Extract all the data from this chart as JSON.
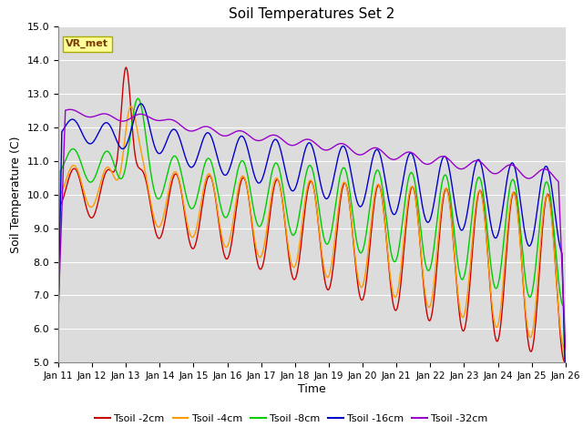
{
  "title": "Soil Temperatures Set 2",
  "xlabel": "Time",
  "ylabel": "Soil Temperature (C)",
  "ylim": [
    5.0,
    15.0
  ],
  "yticks": [
    5.0,
    6.0,
    7.0,
    8.0,
    9.0,
    10.0,
    11.0,
    12.0,
    13.0,
    14.0,
    15.0
  ],
  "bg_color": "#dcdcdc",
  "fig_color": "#ffffff",
  "grid_color": "#ffffff",
  "legend_labels": [
    "Tsoil -2cm",
    "Tsoil -4cm",
    "Tsoil -8cm",
    "Tsoil -16cm",
    "Tsoil -32cm"
  ],
  "line_colors": [
    "#cc0000",
    "#ff9900",
    "#00cc00",
    "#0000cc",
    "#9900cc"
  ],
  "annotation_text": "VR_met",
  "annotation_color": "#7a3b00",
  "annotation_bg": "#ffff99",
  "annotation_edge": "#aaaa00",
  "x_tick_labels": [
    "Jan 11",
    "Jan 12",
    "Jan 13",
    "Jan 14",
    "Jan 15",
    "Jan 16",
    "Jan 17",
    "Jan 18",
    "Jan 19",
    "Jan 20",
    "Jan 21",
    "Jan 22",
    "Jan 23",
    "Jan 24",
    "Jan 25",
    "Jan 26"
  ],
  "n_points": 721,
  "days": 15
}
